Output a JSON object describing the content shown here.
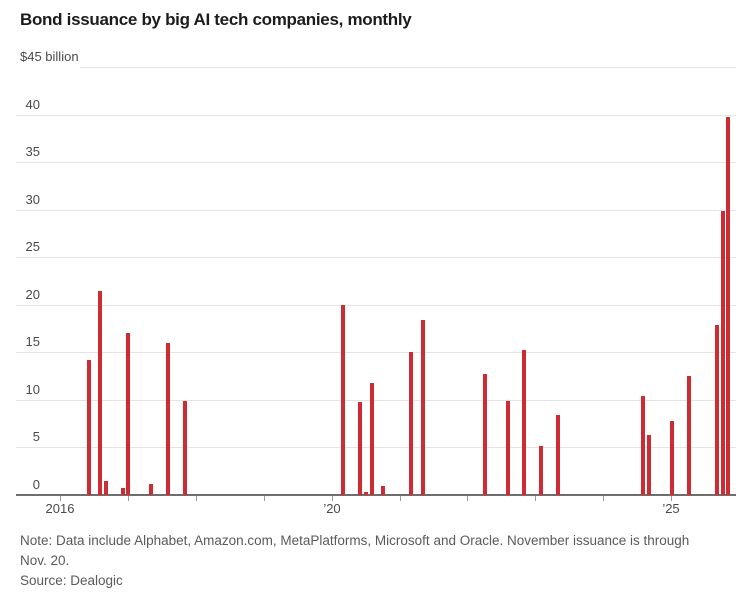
{
  "header": {
    "title": "Bond issuance by big AI tech companies, monthly"
  },
  "chart_data": {
    "type": "bar",
    "title": "Bond issuance by big AI tech companies, monthly",
    "top_axis_label": "$45 billion",
    "yticks": [
      0,
      5,
      10,
      15,
      20,
      25,
      30,
      35,
      40
    ],
    "ymax": 45,
    "ylim": [
      0,
      45
    ],
    "grid": true,
    "x_axis": {
      "start_year": 2016,
      "end_year": 2025,
      "tick_years": [
        2016,
        2017,
        2018,
        2019,
        2020,
        2021,
        2022,
        2023,
        2024,
        2025
      ],
      "tick_labels": {
        "2016": "2016",
        "2020": "’20",
        "2025": "’25"
      }
    },
    "points": [
      {
        "date": "Jun 2016",
        "y": 2016,
        "m": 5,
        "v": 14.2
      },
      {
        "date": "Aug 2016",
        "y": 2016,
        "m": 7,
        "v": 21.5
      },
      {
        "date": "Sep 2016",
        "y": 2016,
        "m": 8,
        "v": 1.5
      },
      {
        "date": "Dec 2016",
        "y": 2016,
        "m": 11,
        "v": 0.7
      },
      {
        "date": "Jan 2017",
        "y": 2017,
        "m": 0,
        "v": 17.0
      },
      {
        "date": "May 2017",
        "y": 2017,
        "m": 4,
        "v": 1.2
      },
      {
        "date": "Aug 2017",
        "y": 2017,
        "m": 7,
        "v": 16.0
      },
      {
        "date": "Nov 2017",
        "y": 2017,
        "m": 10,
        "v": 9.9
      },
      {
        "date": "Mar 2020",
        "y": 2020,
        "m": 2,
        "v": 20.0
      },
      {
        "date": "Jun 2020",
        "y": 2020,
        "m": 5,
        "v": 9.8
      },
      {
        "date": "Jul 2020",
        "y": 2020,
        "m": 6,
        "v": 0.3
      },
      {
        "date": "Aug 2020",
        "y": 2020,
        "m": 7,
        "v": 11.8
      },
      {
        "date": "Oct 2020",
        "y": 2020,
        "m": 9,
        "v": 0.9
      },
      {
        "date": "Mar 2021",
        "y": 2021,
        "m": 2,
        "v": 15.0
      },
      {
        "date": "May 2021",
        "y": 2021,
        "m": 4,
        "v": 18.4
      },
      {
        "date": "Apr 2022",
        "y": 2022,
        "m": 3,
        "v": 12.7
      },
      {
        "date": "Aug 2022",
        "y": 2022,
        "m": 7,
        "v": 9.9
      },
      {
        "date": "Nov 2022",
        "y": 2022,
        "m": 10,
        "v": 15.2
      },
      {
        "date": "Feb 2023",
        "y": 2023,
        "m": 1,
        "v": 5.2
      },
      {
        "date": "May 2023",
        "y": 2023,
        "m": 4,
        "v": 8.4
      },
      {
        "date": "Aug 2024",
        "y": 2024,
        "m": 7,
        "v": 10.4
      },
      {
        "date": "Sep 2024",
        "y": 2024,
        "m": 8,
        "v": 6.3
      },
      {
        "date": "Jan 2025",
        "y": 2025,
        "m": 0,
        "v": 7.8
      },
      {
        "date": "Apr 2025",
        "y": 2025,
        "m": 3,
        "v": 12.5
      },
      {
        "date": "Sep 2025",
        "y": 2025,
        "m": 8,
        "v": 17.9
      },
      {
        "date": "Oct 2025",
        "y": 2025,
        "m": 9,
        "v": 29.9
      },
      {
        "date": "Nov 2025",
        "y": 2025,
        "m": 10,
        "v": 39.7
      }
    ],
    "colors": {
      "bar": "#cf2b33",
      "grid": "#e4e4e4",
      "axis": "#6e6e6e",
      "label": "#4a4a4a"
    }
  },
  "footer": {
    "note": "Note: Data include Alphabet, Amazon.com, MetaPlatforms, Microsoft and Oracle. November issuance is through Nov. 20.",
    "source": "Source: Dealogic"
  }
}
